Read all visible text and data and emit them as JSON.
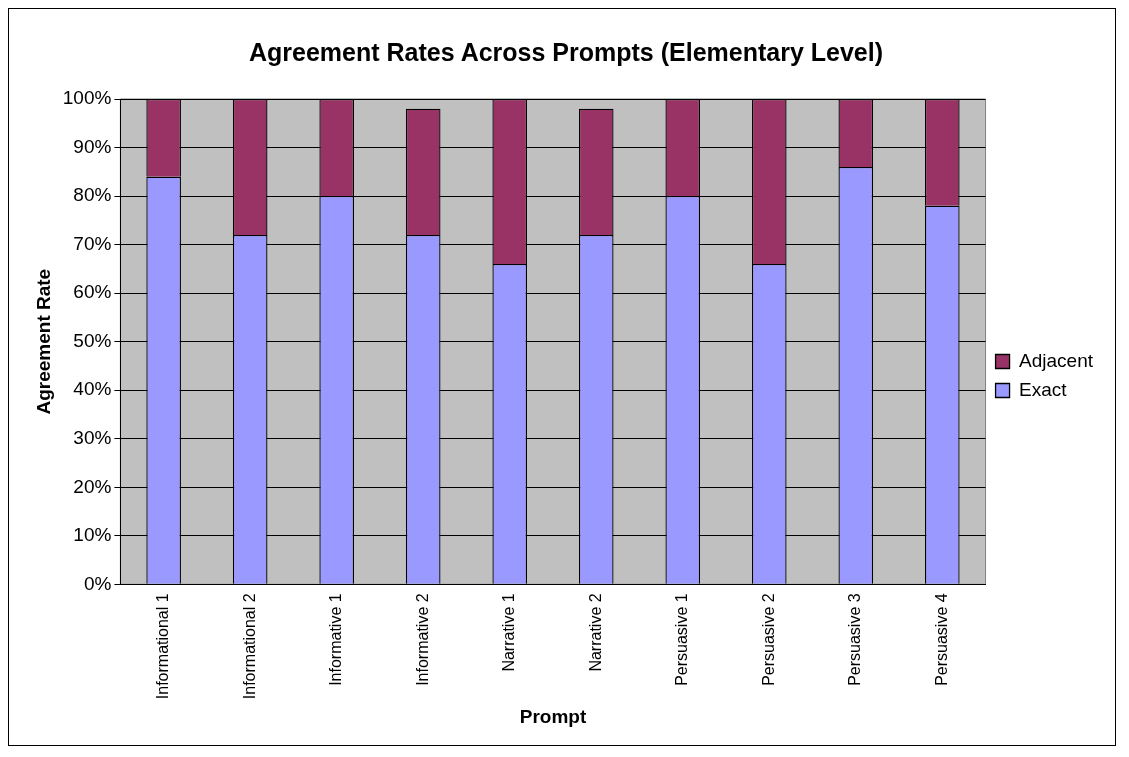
{
  "chart_data": {
    "type": "bar",
    "title": "Agreement Rates Across Prompts (Elementary Level)",
    "xlabel": "Prompt",
    "ylabel": "Agreement Rate",
    "categories": [
      "Informational 1",
      "Informational 2",
      "Informative 1",
      "Informative 2",
      "Narrative 1",
      "Narrative 2",
      "Persuasive 1",
      "Persuasive 2",
      "Persuasive 3",
      "Persuasive 4"
    ],
    "stacked": true,
    "series": [
      {
        "name": "Exact",
        "color": "#9999ff",
        "values": [
          84,
          72,
          80,
          72,
          66,
          72,
          80,
          66,
          86,
          78
        ]
      },
      {
        "name": "Adjacent",
        "color": "#993366",
        "values": [
          16,
          28,
          20,
          26,
          34,
          26,
          20,
          34,
          14,
          22
        ]
      }
    ],
    "ylim": [
      0,
      100
    ],
    "yticks": [
      {
        "value": 0,
        "label": "0%"
      },
      {
        "value": 10,
        "label": "10%"
      },
      {
        "value": 20,
        "label": "20%"
      },
      {
        "value": 30,
        "label": "30%"
      },
      {
        "value": 40,
        "label": "40%"
      },
      {
        "value": 50,
        "label": "50%"
      },
      {
        "value": 60,
        "label": "60%"
      },
      {
        "value": 70,
        "label": "70%"
      },
      {
        "value": 80,
        "label": "80%"
      },
      {
        "value": 90,
        "label": "90%"
      },
      {
        "value": 100,
        "label": "100%"
      }
    ],
    "grid": "y",
    "legend": "right"
  }
}
